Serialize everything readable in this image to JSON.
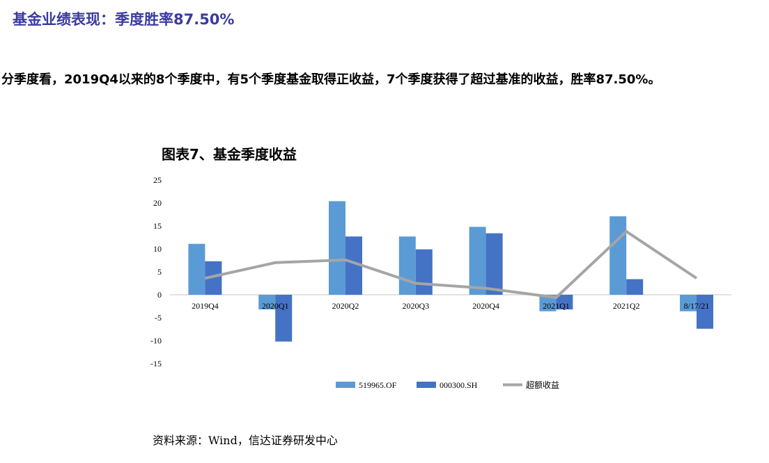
{
  "header": {
    "title": "基金业绩表现：季度胜率87.50%"
  },
  "paragraph": "分季度看，2019Q4以来的8个季度中，有5个季度基金取得正收益，7个季度获得了超过基准的收益，胜率87.50%。",
  "source": "资料来源：Wind，信达证券研发中心",
  "chart_data": {
    "type": "bar",
    "title": "图表7、基金季度收益",
    "categories": [
      "2019Q4",
      "2020Q1",
      "2020Q2",
      "2020Q3",
      "2020Q4",
      "2021Q1",
      "2021Q2",
      "8/17/21"
    ],
    "ylim": [
      -15,
      25
    ],
    "yticks": [
      25,
      20,
      15,
      10,
      5,
      0,
      -5,
      -10,
      -15
    ],
    "legend_position": "bottom",
    "series": [
      {
        "name": "519965.OF",
        "type": "bar",
        "color": "#5b9bd5",
        "values": [
          11.1,
          -3.2,
          20.4,
          12.7,
          14.8,
          -3.6,
          17.1,
          -3.6
        ]
      },
      {
        "name": "000300.SH",
        "type": "bar",
        "color": "#4472c4",
        "values": [
          7.3,
          -10.2,
          12.7,
          9.9,
          13.4,
          -3.2,
          3.4,
          -7.4
        ]
      },
      {
        "name": "超额收益",
        "type": "line",
        "color": "#a5a5a5",
        "values": [
          3.6,
          7.0,
          7.6,
          2.5,
          1.4,
          -0.6,
          13.8,
          3.6
        ]
      }
    ]
  }
}
